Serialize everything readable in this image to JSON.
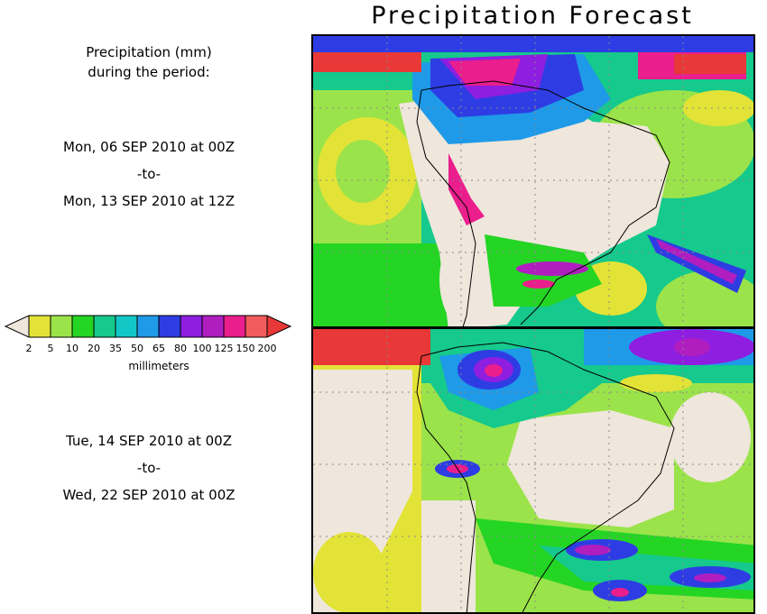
{
  "title": "Precipitation Forecast",
  "header": {
    "line1": "Precipitation (mm)",
    "line2": "during the period:"
  },
  "periods": [
    {
      "start": "Mon, 06 SEP 2010 at 00Z",
      "sep": "-to-",
      "end": "Mon, 13 SEP 2010 at 12Z"
    },
    {
      "start": "Tue, 14 SEP 2010 at 00Z",
      "sep": "-to-",
      "end": "Wed, 22 SEP 2010 at 00Z"
    }
  ],
  "legend": {
    "unit": "millimeters",
    "labels": [
      "2",
      "5",
      "10",
      "20",
      "35",
      "50",
      "65",
      "80",
      "100",
      "125",
      "150",
      "200"
    ],
    "colors": [
      "#efe6dc",
      "#e3e337",
      "#9be34a",
      "#24d524",
      "#16c98c",
      "#14c7c7",
      "#1e9ae8",
      "#2e3de3",
      "#8e1ee0",
      "#b01ec0",
      "#ea1e8c",
      "#f25c5c",
      "#e83838"
    ]
  }
}
